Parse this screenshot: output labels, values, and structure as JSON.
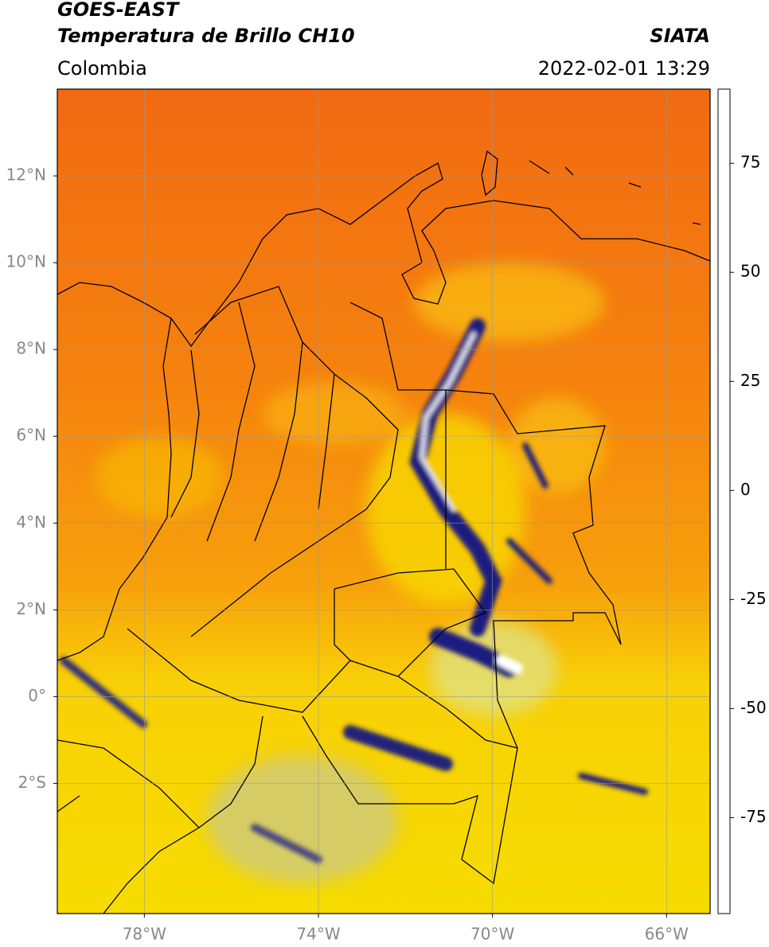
{
  "header": {
    "title": "GOES-EAST",
    "subtitle": "Temperatura de Brillo CH10",
    "source": "SIATA",
    "region": "Colombia",
    "datetime": "2022-02-01 13:29"
  },
  "map": {
    "lon_range": [
      -80,
      -65
    ],
    "lat_range": [
      -5,
      14
    ],
    "lon_ticks": [
      {
        "value": -78,
        "label": "78°W"
      },
      {
        "value": -74,
        "label": "74°W"
      },
      {
        "value": -70,
        "label": "70°W"
      },
      {
        "value": -66,
        "label": "66°W"
      }
    ],
    "lat_ticks": [
      {
        "value": 12,
        "label": "12°N"
      },
      {
        "value": 10,
        "label": "10°N"
      },
      {
        "value": 8,
        "label": "8°N"
      },
      {
        "value": 6,
        "label": "6°N"
      },
      {
        "value": 4,
        "label": "4°N"
      },
      {
        "value": 2,
        "label": "2°N"
      },
      {
        "value": 0,
        "label": "0°"
      },
      {
        "value": -2,
        "label": "2°S"
      }
    ],
    "grid": true
  },
  "colorbar": {
    "range": [
      -97,
      92
    ],
    "ticks": [
      75,
      50,
      25,
      0,
      -25,
      -50,
      -75
    ],
    "color_stops": [
      {
        "value": -97,
        "color": "#ffffff"
      },
      {
        "value": -92,
        "color": "#ffffff"
      },
      {
        "value": -92,
        "color": "#00d8d8"
      },
      {
        "value": -80,
        "color": "#1a9a8a"
      },
      {
        "value": -65,
        "color": "#2e7d32"
      },
      {
        "value": -55,
        "color": "#8fbf79"
      },
      {
        "value": -50,
        "color": "#ffffff"
      },
      {
        "value": -40,
        "color": "#9090c0"
      },
      {
        "value": -30,
        "color": "#101080"
      },
      {
        "value": -25,
        "color": "#404070"
      },
      {
        "value": -20,
        "color": "#a0a060"
      },
      {
        "value": -15,
        "color": "#ffff00"
      },
      {
        "value": -5,
        "color": "#ffaa00"
      },
      {
        "value": 5,
        "color": "#ff6000"
      },
      {
        "value": 8,
        "color": "#ff0000"
      },
      {
        "value": 8,
        "color": "#000000"
      },
      {
        "value": 92,
        "color": "#000000"
      }
    ]
  }
}
